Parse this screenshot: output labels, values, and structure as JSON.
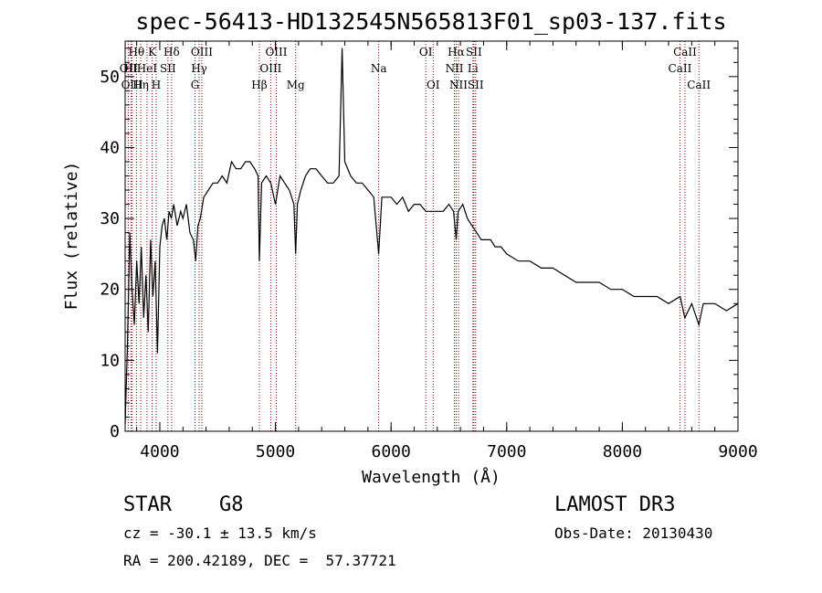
{
  "chart_data": {
    "type": "line",
    "title": "spec-56413-HD132545N565813F01_sp03-137.fits",
    "xlabel": "Wavelength (Å)",
    "ylabel": "Flux (relative)",
    "xlim": [
      3700,
      9000
    ],
    "ylim": [
      0,
      55
    ],
    "xticks": [
      4000,
      5000,
      6000,
      7000,
      8000,
      9000
    ],
    "yticks": [
      0,
      10,
      20,
      30,
      40,
      50
    ],
    "series": [
      {
        "name": "flux",
        "color": "#000000",
        "x": [
          3700,
          3720,
          3740,
          3760,
          3780,
          3800,
          3820,
          3840,
          3860,
          3880,
          3900,
          3920,
          3940,
          3960,
          3980,
          4000,
          4020,
          4040,
          4060,
          4080,
          4100,
          4120,
          4150,
          4180,
          4200,
          4230,
          4260,
          4290,
          4310,
          4330,
          4350,
          4380,
          4420,
          4460,
          4500,
          4540,
          4580,
          4620,
          4660,
          4700,
          4740,
          4780,
          4820,
          4850,
          4861,
          4880,
          4920,
          4960,
          5000,
          5040,
          5080,
          5120,
          5160,
          5175,
          5190,
          5220,
          5260,
          5300,
          5350,
          5400,
          5450,
          5500,
          5550,
          5577,
          5600,
          5650,
          5700,
          5750,
          5800,
          5850,
          5893,
          5920,
          5960,
          6000,
          6050,
          6100,
          6150,
          6200,
          6250,
          6300,
          6350,
          6400,
          6450,
          6500,
          6540,
          6563,
          6580,
          6620,
          6660,
          6700,
          6740,
          6780,
          6820,
          6860,
          6900,
          6950,
          7000,
          7100,
          7200,
          7300,
          7400,
          7500,
          7600,
          7700,
          7800,
          7900,
          8000,
          8100,
          8200,
          8300,
          8400,
          8500,
          8540,
          8600,
          8662,
          8700,
          8800,
          8900,
          9000
        ],
        "values": [
          1,
          12,
          28,
          20,
          15,
          24,
          18,
          26,
          16,
          22,
          14,
          27,
          19,
          24,
          11,
          26,
          29,
          30,
          27,
          31,
          30,
          32,
          29,
          31,
          30,
          32,
          28,
          27,
          24,
          29,
          30,
          33,
          34,
          35,
          35,
          36,
          35,
          38,
          37,
          37,
          38,
          38,
          37,
          36,
          24,
          35,
          36,
          35,
          32,
          36,
          35,
          34,
          32,
          25,
          32,
          34,
          36,
          37,
          37,
          36,
          35,
          35,
          36,
          54,
          38,
          36,
          35,
          35,
          34,
          33,
          25,
          33,
          33,
          33,
          32,
          33,
          31,
          32,
          32,
          31,
          31,
          31,
          31,
          32,
          31,
          27,
          31,
          32,
          30,
          29,
          28,
          27,
          27,
          27,
          26,
          26,
          25,
          24,
          24,
          23,
          23,
          22,
          21,
          21,
          21,
          20,
          20,
          19,
          19,
          19,
          18,
          19,
          16,
          18,
          15,
          18,
          18,
          17,
          18
        ]
      }
    ],
    "lines": [
      {
        "name": "Hθ",
        "x": 3798,
        "row": 0
      },
      {
        "name": "OII",
        "x": 3727,
        "row": 1
      },
      {
        "name": "HI",
        "x": 3750,
        "row": 1
      },
      {
        "name": "OIII",
        "x": 3760,
        "row": 2
      },
      {
        "name": "Hη",
        "x": 3835,
        "row": 2
      },
      {
        "name": "HeI",
        "x": 3889,
        "row": 1
      },
      {
        "name": "K",
        "x": 3934,
        "row": 0
      },
      {
        "name": "SII",
        "x": 4070,
        "row": 1
      },
      {
        "name": "H",
        "x": 3968,
        "row": 2
      },
      {
        "name": "Hδ",
        "x": 4102,
        "row": 0
      },
      {
        "name": "OIII",
        "x": 4363,
        "row": 0
      },
      {
        "name": "Hγ",
        "x": 4340,
        "row": 1
      },
      {
        "name": "G",
        "x": 4305,
        "row": 2
      },
      {
        "name": "OIII",
        "x": 5007,
        "row": 0
      },
      {
        "name": "OIII",
        "x": 4959,
        "row": 1
      },
      {
        "name": "Hβ",
        "x": 4861,
        "row": 2
      },
      {
        "name": "Mg",
        "x": 5175,
        "row": 2
      },
      {
        "name": "Na",
        "x": 5893,
        "row": 1
      },
      {
        "name": "OI",
        "x": 6300,
        "row": 0
      },
      {
        "name": "OI",
        "x": 6364,
        "row": 2
      },
      {
        "name": "Hα",
        "x": 6563,
        "row": 0
      },
      {
        "name": "SII",
        "x": 6716,
        "row": 0
      },
      {
        "name": "NII",
        "x": 6548,
        "row": 1
      },
      {
        "name": "Li",
        "x": 6708,
        "row": 1
      },
      {
        "name": "NII",
        "x": 6583,
        "row": 2
      },
      {
        "name": "SII",
        "x": 6731,
        "row": 2
      },
      {
        "name": "CaII",
        "x": 8542,
        "row": 0
      },
      {
        "name": "CaII",
        "x": 8498,
        "row": 1
      },
      {
        "name": "CaII",
        "x": 8662,
        "row": 2
      }
    ],
    "line_color": "#8b0000"
  },
  "info": {
    "class": "STAR",
    "subclass": "G8",
    "survey": "LAMOST DR3",
    "cz": "cz = -30.1 ± 13.5 km/s",
    "obs_date": "Obs-Date: 20130430",
    "coords": "RA = 200.42189, DEC =  57.37721"
  }
}
